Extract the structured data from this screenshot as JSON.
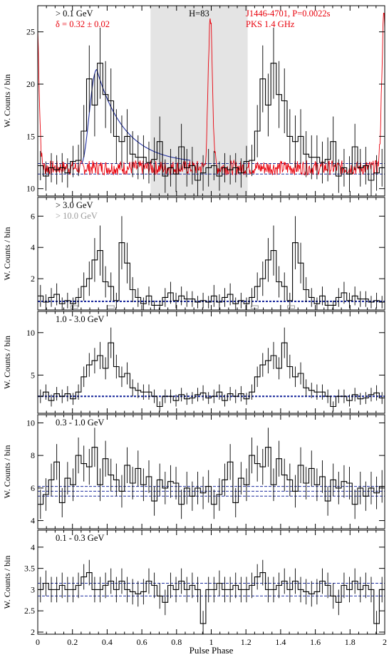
{
  "chart_data": {
    "type": "pulse-profile-stack",
    "xlabel": "Pulse Phase",
    "xlim": [
      0,
      2
    ],
    "xticks": [
      0,
      0.2,
      0.4,
      0.6,
      0.8,
      1,
      1.2,
      1.4,
      1.6,
      1.8,
      2
    ],
    "xtick_labels": [
      "0",
      "0.2",
      "0.4",
      "0.6",
      "0.8",
      "1",
      "1.2",
      "1.4",
      "1.6",
      "1.8",
      "2"
    ],
    "bins_per_cycle": 32,
    "panels": [
      {
        "ylabel": "W. Counts / bin",
        "ylim": [
          9.3,
          27.5
        ],
        "yticks": [
          10,
          15,
          20,
          25
        ],
        "labels": [
          {
            "text": "> 0.1 GeV",
            "color": "#000000"
          },
          {
            "text": "δ = 0.32 ± 0.02",
            "color": "#e8000b"
          }
        ],
        "right_labels": [
          {
            "text": "J1446-4701, P=0.0022s",
            "color": "#e8000b"
          },
          {
            "text": "PKS 1.4 GHz",
            "color": "#e8000b"
          }
        ],
        "center_label": "H=83",
        "shaded_x": [
          0.65,
          1.21
        ],
        "shade_color": "#e4e4e4",
        "values": [
          12.2,
          11.2,
          12.0,
          11.8,
          12.0,
          11.5,
          12.6,
          12.7,
          15.5,
          20.5,
          18.0,
          22.0,
          19.0,
          18.4,
          15.0,
          14.5,
          15.0,
          13.3,
          13.0,
          13.0,
          12.5,
          12.8,
          14.5,
          11.2,
          12.0,
          11.4,
          14.0,
          12.0,
          12.2,
          10.8,
          11.5,
          12.0
        ],
        "errors": [
          1.4,
          1.4,
          1.4,
          1.4,
          1.4,
          1.4,
          1.5,
          1.5,
          2.5,
          3.2,
          3.0,
          3.4,
          3.2,
          3.1,
          2.6,
          2.5,
          2.6,
          2.2,
          2.1,
          2.1,
          2.0,
          2.1,
          2.4,
          1.6,
          1.8,
          1.7,
          2.2,
          1.8,
          1.8,
          1.6,
          1.7,
          1.8
        ],
        "background": [
          11.4,
          12.4
        ],
        "bg_color": "#1f2e9e",
        "fit_curve": {
          "color": "#1f2e9e",
          "x_range": [
            0.25,
            0.88
          ],
          "peak_x": 0.34,
          "peak_y": 21.4,
          "base_y": 12.4
        },
        "radio_curve": {
          "color": "#e8000b",
          "peak_x": 0.995,
          "peak_y": 26.5,
          "base_y": 12.0
        }
      },
      {
        "ylabel": "W. Counts / bin",
        "ylim": [
          0,
          7.2
        ],
        "yticks": [
          2,
          4,
          6
        ],
        "labels": [
          {
            "text": "> 3.0 GeV",
            "color": "#000000"
          },
          {
            "text": "> 10.0 GeV",
            "color": "#9a9a9a"
          }
        ],
        "values": [
          0.9,
          0.5,
          0.8,
          1.0,
          0.4,
          0.6,
          0.4,
          0.8,
          1.5,
          2.0,
          3.2,
          3.8,
          1.8,
          1.5,
          0.6,
          4.3,
          3.0,
          1.3,
          0.8,
          0.4,
          0.9,
          0.3,
          0.3,
          0.8,
          1.1,
          0.6,
          0.9,
          0.7,
          0.7,
          0.5,
          0.6,
          0.5
        ],
        "errors": [
          0.7,
          0.5,
          0.6,
          0.7,
          0.4,
          0.5,
          0.4,
          0.6,
          0.9,
          1.1,
          1.4,
          1.6,
          1.0,
          0.9,
          0.5,
          1.7,
          1.3,
          0.8,
          0.6,
          0.4,
          0.6,
          0.3,
          0.3,
          0.6,
          0.7,
          0.5,
          0.6,
          0.5,
          0.5,
          0.4,
          0.5,
          0.4
        ],
        "background": [
          0.55
        ],
        "bg_color": "#1f2e9e",
        "gray_marks_x": [
          0.21,
          0.42,
          1.25,
          1.46
        ],
        "gray_color": "#9a9a9a"
      },
      {
        "ylabel": "W. Counts / bin",
        "ylim": [
          0.5,
          12.5
        ],
        "yticks": [
          5,
          10
        ],
        "labels": [
          {
            "text": "1.0 - 3.0 GeV",
            "color": "#000000"
          }
        ],
        "values": [
          2.5,
          3.0,
          2.0,
          2.8,
          2.5,
          2.8,
          2.2,
          3.0,
          4.8,
          6.2,
          6.7,
          7.3,
          5.8,
          8.8,
          6.0,
          4.8,
          5.2,
          3.5,
          3.2,
          3.0,
          3.0,
          2.5,
          1.3,
          2.5,
          2.5,
          2.0,
          2.7,
          2.2,
          2.3,
          2.7,
          2.9,
          2.3
        ],
        "errors": [
          0.8,
          0.9,
          0.7,
          0.8,
          0.8,
          0.9,
          0.7,
          0.9,
          1.2,
          1.4,
          1.5,
          1.6,
          1.3,
          1.8,
          1.4,
          1.2,
          1.3,
          1.0,
          0.9,
          0.9,
          0.9,
          0.8,
          0.6,
          0.8,
          0.8,
          0.7,
          0.8,
          0.7,
          0.7,
          0.8,
          0.9,
          0.7
        ],
        "background": [
          2.5
        ],
        "bg_color": "#1f2e9e"
      },
      {
        "ylabel": "W. Counts / bin",
        "ylim": [
          3.5,
          10.5
        ],
        "yticks": [
          4,
          6,
          8,
          10
        ],
        "labels": [
          {
            "text": "0.3 - 1.0 GeV",
            "color": "#000000"
          }
        ],
        "values": [
          5.0,
          5.6,
          6.5,
          7.6,
          5.1,
          6.6,
          6.2,
          8.0,
          7.5,
          7.3,
          8.5,
          6.2,
          7.8,
          6.8,
          6.5,
          5.8,
          7.4,
          6.3,
          7.2,
          6.2,
          6.7,
          5.2,
          6.5,
          6.0,
          6.4,
          6.3,
          5.0,
          6.0,
          5.5,
          6.0,
          5.7,
          6.1
        ],
        "errors": [
          0.9,
          1.0,
          1.0,
          1.1,
          0.9,
          1.0,
          1.0,
          1.1,
          1.1,
          1.1,
          1.2,
          1.0,
          1.1,
          1.0,
          1.0,
          1.0,
          1.1,
          1.0,
          1.1,
          1.0,
          1.0,
          0.9,
          1.0,
          1.0,
          1.0,
          1.0,
          0.9,
          1.0,
          0.9,
          1.0,
          1.0,
          1.0
        ],
        "background": [
          5.5,
          5.8,
          6.1
        ],
        "bg_color": "#1f2e9e"
      },
      {
        "ylabel": "W. Counts / bin",
        "ylim": [
          1.95,
          4.4
        ],
        "yticks": [
          2,
          2.5,
          3,
          3.5,
          4
        ],
        "labels": [
          {
            "text": "0.1 - 0.3 GeV",
            "color": "#000000"
          }
        ],
        "values": [
          3.0,
          3.15,
          3.0,
          3.0,
          3.1,
          3.0,
          3.0,
          3.1,
          3.3,
          3.4,
          3.0,
          3.0,
          3.1,
          3.2,
          3.0,
          3.2,
          3.0,
          2.95,
          2.9,
          2.95,
          3.2,
          3.1,
          2.85,
          2.7,
          3.1,
          3.0,
          3.2,
          3.0,
          3.1,
          3.0,
          2.2,
          3.0
        ],
        "errors": [
          0.3,
          0.3,
          0.3,
          0.3,
          0.3,
          0.3,
          0.3,
          0.3,
          0.3,
          0.3,
          0.3,
          0.3,
          0.3,
          0.3,
          0.3,
          0.3,
          0.3,
          0.3,
          0.3,
          0.3,
          0.3,
          0.3,
          0.3,
          0.3,
          0.3,
          0.3,
          0.3,
          0.3,
          0.3,
          0.3,
          0.3,
          0.3
        ],
        "background": [
          2.85,
          3.15
        ],
        "bg_color": "#1f2e9e"
      }
    ]
  }
}
